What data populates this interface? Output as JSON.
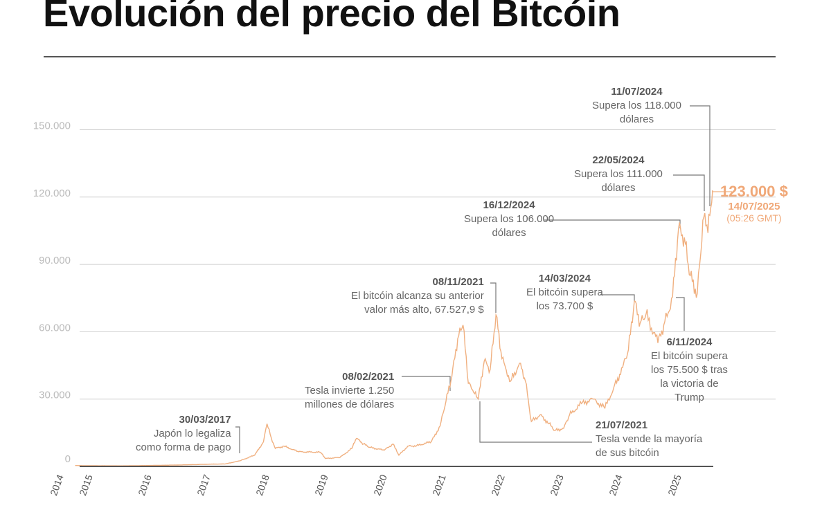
{
  "title": "Evolución del precio del Bitcóin",
  "chart_data": {
    "type": "line",
    "title": "Evolución del precio del Bitcóin",
    "xlabel": "",
    "ylabel": "",
    "xlim": [
      2014.7,
      2025.53
    ],
    "ylim": [
      0,
      150000
    ],
    "grid": true,
    "line_color": "#f0b080",
    "yticks": [
      {
        "v": 0,
        "label": "0"
      },
      {
        "v": 30000,
        "label": "30.000"
      },
      {
        "v": 60000,
        "label": "60.000"
      },
      {
        "v": 90000,
        "label": "90.000"
      },
      {
        "v": 120000,
        "label": "120.000"
      },
      {
        "v": 150000,
        "label": "150.000"
      }
    ],
    "xticks": [
      {
        "v": 2014,
        "label": "2014"
      },
      {
        "v": 2015,
        "label": "2015"
      },
      {
        "v": 2016,
        "label": "2016"
      },
      {
        "v": 2017,
        "label": "2017"
      },
      {
        "v": 2018,
        "label": "2018"
      },
      {
        "v": 2019,
        "label": "2019"
      },
      {
        "v": 2020,
        "label": "2020"
      },
      {
        "v": 2021,
        "label": "2021"
      },
      {
        "v": 2022,
        "label": "2022"
      },
      {
        "v": 2023,
        "label": "2023"
      },
      {
        "v": 2024,
        "label": "2024"
      },
      {
        "v": 2025,
        "label": "2025"
      }
    ],
    "points": [
      [
        2014.7,
        400
      ],
      [
        2015,
        300
      ],
      [
        2015.5,
        260
      ],
      [
        2016,
        430
      ],
      [
        2016.5,
        650
      ],
      [
        2017,
        1000
      ],
      [
        2017.25,
        1100
      ],
      [
        2017.5,
        2500
      ],
      [
        2017.75,
        5000
      ],
      [
        2017.9,
        11000
      ],
      [
        2017.96,
        19000
      ],
      [
        2018.05,
        11000
      ],
      [
        2018.1,
        8000
      ],
      [
        2018.25,
        9000
      ],
      [
        2018.4,
        7500
      ],
      [
        2018.5,
        6500
      ],
      [
        2018.87,
        6300
      ],
      [
        2018.95,
        3500
      ],
      [
        2019.2,
        4000
      ],
      [
        2019.4,
        8000
      ],
      [
        2019.48,
        12500
      ],
      [
        2019.6,
        10000
      ],
      [
        2019.7,
        8500
      ],
      [
        2019.95,
        7200
      ],
      [
        2020.1,
        10000
      ],
      [
        2020.2,
        5000
      ],
      [
        2020.35,
        9000
      ],
      [
        2020.5,
        9200
      ],
      [
        2020.75,
        11000
      ],
      [
        2020.9,
        18000
      ],
      [
        2021.0,
        29000
      ],
      [
        2021.1,
        40000
      ],
      [
        2021.2,
        57000
      ],
      [
        2021.29,
        63000
      ],
      [
        2021.38,
        37000
      ],
      [
        2021.47,
        33000
      ],
      [
        2021.55,
        30000
      ],
      [
        2021.65,
        47000
      ],
      [
        2021.75,
        43000
      ],
      [
        2021.85,
        67500
      ],
      [
        2021.95,
        48000
      ],
      [
        2022.1,
        38000
      ],
      [
        2022.25,
        46000
      ],
      [
        2022.35,
        38000
      ],
      [
        2022.45,
        20000
      ],
      [
        2022.6,
        23000
      ],
      [
        2022.75,
        19000
      ],
      [
        2022.85,
        16000
      ],
      [
        2023.0,
        17000
      ],
      [
        2023.1,
        23000
      ],
      [
        2023.3,
        28000
      ],
      [
        2023.5,
        30000
      ],
      [
        2023.7,
        26000
      ],
      [
        2023.85,
        35000
      ],
      [
        2024.0,
        44000
      ],
      [
        2024.1,
        52000
      ],
      [
        2024.2,
        73700
      ],
      [
        2024.3,
        64000
      ],
      [
        2024.4,
        68000
      ],
      [
        2024.6,
        55000
      ],
      [
        2024.7,
        63000
      ],
      [
        2024.85,
        75500
      ],
      [
        2024.95,
        106000
      ],
      [
        2025.05,
        102000
      ],
      [
        2025.15,
        85000
      ],
      [
        2025.27,
        77000
      ],
      [
        2025.33,
        95000
      ],
      [
        2025.38,
        111000
      ],
      [
        2025.45,
        104000
      ],
      [
        2025.53,
        123000
      ]
    ]
  },
  "annotations": {
    "a1": {
      "date": "30/03/2017",
      "text1": "Japón lo legaliza",
      "text2": "como forma de pago"
    },
    "a2": {
      "date": "08/02/2021",
      "text1": "Tesla invierte 1.250",
      "text2": "millones de dólares"
    },
    "a3": {
      "date": "08/11/2021",
      "text1": "El bitcóin alcanza su anterior",
      "text2": "valor más alto, 67.527,9 $"
    },
    "a4": {
      "date": "21/07/2021",
      "text1": "Tesla vende la mayoría",
      "text2": "de sus bitcóin"
    },
    "a5": {
      "date": "14/03/2024",
      "text1": "El bitcóin supera",
      "text2": "los 73.700 $"
    },
    "a6": {
      "date": "6/11/2024",
      "text1": "El bitcóin supera",
      "text2": "los 75.500 $ tras",
      "text3": "la victoria de",
      "text4": "Trump"
    },
    "a7": {
      "date": "16/12/2024",
      "text1": "Supera los 106.000",
      "text2": "dólares"
    },
    "a8": {
      "date": "22/05/2024",
      "text1": "Supera los 111.000",
      "text2": "dólares"
    },
    "a9": {
      "date": "11/07/2024",
      "text1": "Supera los 118.000",
      "text2": "dólares"
    }
  },
  "highlight": {
    "value": "123.000 $",
    "date": "14/07/2025",
    "time": "(05:26 GMT)"
  }
}
